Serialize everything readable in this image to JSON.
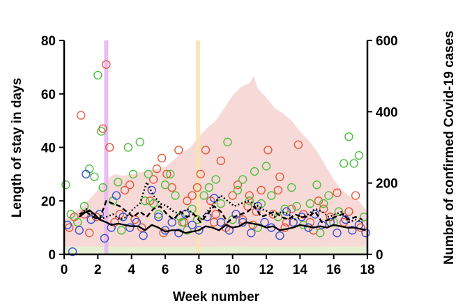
{
  "chart_data": {
    "type": "scatter",
    "title": "",
    "xlabel": "Week number",
    "ylabel": "Length of stay in days",
    "y2label": "Number of confirmed Covid-19 cases",
    "xlim": [
      0,
      18
    ],
    "ylim": [
      0,
      80
    ],
    "y2lim": [
      0,
      600
    ],
    "xticks": [
      "0",
      "2",
      "4",
      "6",
      "8",
      "10",
      "12",
      "14",
      "16",
      "18"
    ],
    "yticks": [
      "0",
      "20",
      "40",
      "60",
      "80"
    ],
    "y2ticks": [
      "0",
      "200",
      "400",
      "600"
    ],
    "grid": false,
    "colors": {
      "red": "#e8563a",
      "green": "#4cbf3c",
      "blue": "#3a4fd8",
      "cases_area": "#f6d3d0",
      "green_area": "#e2f3d2",
      "marker_purple": "#e7b6f3",
      "marker_yellow": "#f9e2b2"
    },
    "vertical_markers": [
      {
        "x": 2.5,
        "color": "#e7b6f3"
      },
      {
        "x": 7.95,
        "color": "#f9e2b2"
      }
    ],
    "cases_series": {
      "axis": "right",
      "x": [
        0,
        0.5,
        1,
        1.5,
        2,
        2.5,
        3,
        3.5,
        4,
        4.5,
        5,
        5.5,
        6,
        6.5,
        7,
        7.5,
        8,
        8.5,
        9,
        9.5,
        10,
        10.5,
        11,
        11.25,
        11.5,
        12,
        12.5,
        13,
        13.5,
        14,
        14.5,
        15,
        15.5,
        16,
        16.5,
        17,
        17.5,
        18
      ],
      "y": [
        95,
        115,
        130,
        155,
        180,
        210,
        225,
        220,
        225,
        230,
        235,
        240,
        245,
        265,
        285,
        300,
        330,
        355,
        375,
        410,
        445,
        470,
        480,
        500,
        465,
        440,
        410,
        395,
        375,
        345,
        320,
        290,
        250,
        210,
        180,
        160,
        150,
        120
      ]
    },
    "low_band_series": {
      "axis": "right",
      "x": [
        0,
        2,
        4,
        6,
        8,
        10,
        12,
        14,
        16,
        18
      ],
      "y": [
        22,
        22,
        20,
        20,
        20,
        22,
        20,
        20,
        22,
        22
      ]
    },
    "series": [
      {
        "marker": "circle",
        "color": "#e8563a",
        "points": [
          [
            0.3,
            10
          ],
          [
            0.6,
            14
          ],
          [
            1.0,
            52
          ],
          [
            1.2,
            15
          ],
          [
            1.5,
            8
          ],
          [
            1.9,
            14
          ],
          [
            2.3,
            47
          ],
          [
            2.5,
            71
          ],
          [
            2.7,
            40
          ],
          [
            3.0,
            12
          ],
          [
            3.3,
            15
          ],
          [
            3.6,
            24
          ],
          [
            3.9,
            26
          ],
          [
            4.2,
            13
          ],
          [
            4.6,
            10
          ],
          [
            5.1,
            20
          ],
          [
            5.3,
            28
          ],
          [
            5.5,
            32
          ],
          [
            5.8,
            36
          ],
          [
            6.1,
            30
          ],
          [
            6.4,
            25
          ],
          [
            6.8,
            39
          ],
          [
            7.1,
            12
          ],
          [
            7.3,
            20
          ],
          [
            7.6,
            22
          ],
          [
            7.9,
            25
          ],
          [
            8.1,
            30
          ],
          [
            8.4,
            39
          ],
          [
            8.7,
            20
          ],
          [
            9.0,
            15
          ],
          [
            9.3,
            35
          ],
          [
            9.6,
            10
          ],
          [
            10.0,
            22
          ],
          [
            10.3,
            26
          ],
          [
            10.6,
            13
          ],
          [
            11.0,
            22
          ],
          [
            11.4,
            16
          ],
          [
            11.7,
            24
          ],
          [
            12.1,
            39
          ],
          [
            12.4,
            15
          ],
          [
            12.8,
            29
          ],
          [
            13.2,
            12
          ],
          [
            13.5,
            17
          ],
          [
            13.9,
            41
          ],
          [
            14.2,
            15
          ],
          [
            14.6,
            12
          ],
          [
            15.1,
            20
          ],
          [
            15.4,
            17
          ],
          [
            15.8,
            14
          ],
          [
            16.2,
            23
          ],
          [
            16.6,
            12
          ],
          [
            16.9,
            16
          ],
          [
            17.3,
            22
          ],
          [
            17.6,
            10
          ],
          [
            5.9,
            8
          ],
          [
            8.9,
            12
          ],
          [
            11.2,
            11
          ],
          [
            14.8,
            9
          ],
          [
            10.9,
            18
          ],
          [
            12.7,
            24
          ],
          [
            13.1,
            10
          ]
        ]
      },
      {
        "marker": "circle",
        "color": "#4cbf3c",
        "points": [
          [
            0.1,
            26
          ],
          [
            0.4,
            15
          ],
          [
            0.8,
            12
          ],
          [
            1.2,
            18
          ],
          [
            1.5,
            32
          ],
          [
            1.8,
            29
          ],
          [
            2.0,
            67
          ],
          [
            2.2,
            46
          ],
          [
            2.3,
            25
          ],
          [
            2.9,
            20
          ],
          [
            3.2,
            27
          ],
          [
            3.5,
            14
          ],
          [
            3.8,
            40
          ],
          [
            4.1,
            30
          ],
          [
            4.5,
            42
          ],
          [
            4.8,
            20
          ],
          [
            5.0,
            30
          ],
          [
            5.3,
            19
          ],
          [
            5.6,
            15
          ],
          [
            6.0,
            26
          ],
          [
            6.3,
            30
          ],
          [
            6.6,
            22
          ],
          [
            6.9,
            14
          ],
          [
            7.3,
            9
          ],
          [
            7.6,
            17
          ],
          [
            7.9,
            13
          ],
          [
            8.3,
            22
          ],
          [
            8.6,
            25
          ],
          [
            9.0,
            28
          ],
          [
            9.3,
            19
          ],
          [
            9.7,
            42
          ],
          [
            10.0,
            13
          ],
          [
            10.3,
            24
          ],
          [
            10.6,
            28
          ],
          [
            11.0,
            20
          ],
          [
            11.3,
            31
          ],
          [
            11.7,
            19
          ],
          [
            12.0,
            33
          ],
          [
            12.3,
            22
          ],
          [
            12.7,
            14
          ],
          [
            13.1,
            17
          ],
          [
            13.5,
            25
          ],
          [
            13.8,
            18
          ],
          [
            14.2,
            11
          ],
          [
            14.6,
            19
          ],
          [
            15.0,
            26
          ],
          [
            15.4,
            19
          ],
          [
            15.7,
            22
          ],
          [
            16.0,
            12
          ],
          [
            16.3,
            16
          ],
          [
            16.6,
            34
          ],
          [
            16.9,
            44
          ],
          [
            17.2,
            34
          ],
          [
            17.5,
            37
          ],
          [
            17.8,
            14
          ],
          [
            3.4,
            9
          ],
          [
            7.0,
            12
          ],
          [
            11.5,
            10
          ],
          [
            15.2,
            8
          ]
        ]
      },
      {
        "marker": "circle",
        "color": "#3a4fd8",
        "points": [
          [
            0.2,
            11
          ],
          [
            0.5,
            1
          ],
          [
            0.9,
            9
          ],
          [
            1.3,
            30
          ],
          [
            1.6,
            13
          ],
          [
            2.1,
            15
          ],
          [
            2.4,
            6
          ],
          [
            2.8,
            10
          ],
          [
            3.1,
            22
          ],
          [
            3.5,
            14
          ],
          [
            3.9,
            10
          ],
          [
            4.3,
            12
          ],
          [
            4.7,
            7
          ],
          [
            5.2,
            24
          ],
          [
            5.6,
            14
          ],
          [
            6.0,
            9
          ],
          [
            6.4,
            12
          ],
          [
            6.8,
            8
          ],
          [
            7.2,
            15
          ],
          [
            7.6,
            11
          ],
          [
            8.0,
            9
          ],
          [
            8.5,
            14
          ],
          [
            8.9,
            21
          ],
          [
            9.3,
            12
          ],
          [
            9.8,
            9
          ],
          [
            10.2,
            15
          ],
          [
            10.6,
            12
          ],
          [
            11.1,
            8
          ],
          [
            11.5,
            18
          ],
          [
            11.9,
            12
          ],
          [
            12.3,
            10
          ],
          [
            12.8,
            7
          ],
          [
            13.2,
            16
          ],
          [
            13.6,
            12
          ],
          [
            14.1,
            14
          ],
          [
            14.5,
            10
          ],
          [
            14.9,
            15
          ],
          [
            15.3,
            11
          ],
          [
            15.8,
            12
          ],
          [
            16.2,
            8
          ],
          [
            16.7,
            13
          ],
          [
            17.1,
            9
          ],
          [
            17.5,
            11
          ],
          [
            17.9,
            8
          ]
        ]
      }
    ],
    "trend_lines": [
      {
        "style": "solid",
        "color": "#000000",
        "x": [
          0.9,
          1.2,
          1.5,
          1.8,
          2.1,
          2.5,
          2.8,
          3.2,
          3.6,
          4.0,
          4.4,
          4.8,
          5.2,
          5.6,
          6.0,
          6.4,
          6.8,
          7.2,
          7.6,
          8.0,
          8.4,
          8.8,
          9.2,
          9.6,
          10.0,
          10.4,
          10.8,
          11.2,
          11.6,
          12.0,
          12.4,
          12.8,
          13.2,
          13.6,
          14.0,
          14.4,
          14.8,
          15.2,
          15.6,
          16.0,
          16.4,
          16.8,
          17.2,
          17.6,
          17.9
        ],
        "y": [
          14,
          15.5,
          16.5,
          15,
          13,
          12,
          11,
          11.5,
          11,
          10.5,
          10.5,
          9,
          11,
          10,
          8.5,
          9,
          9,
          8,
          8.5,
          9,
          10.5,
          10,
          9,
          11,
          10,
          10.5,
          12,
          11.5,
          11,
          10,
          10.5,
          9,
          9.5,
          10,
          11,
          10.5,
          10,
          10.5,
          10,
          11,
          10.5,
          10,
          10,
          9.5,
          9
        ]
      },
      {
        "style": "dashed",
        "color": "#000000",
        "x": [
          0.9,
          1.3,
          1.7,
          2.1,
          2.5,
          2.9,
          3.3,
          3.7,
          4.1,
          4.5,
          4.9,
          5.3,
          5.7,
          6.1,
          6.5,
          6.9,
          7.3,
          7.7,
          8.1,
          8.5,
          8.9,
          9.3,
          9.7,
          10.1,
          10.5,
          10.9,
          11.3,
          11.7,
          12.1,
          12.5,
          12.9,
          13.3,
          13.7,
          14.1,
          14.5,
          14.9,
          15.3,
          15.7,
          16.1,
          16.5,
          16.9,
          17.3,
          17.7
        ],
        "y": [
          15,
          16,
          14,
          13,
          20,
          19,
          18,
          16,
          14,
          16,
          14,
          17,
          18,
          15,
          13,
          16,
          14,
          15,
          12,
          15,
          18,
          16,
          12,
          14,
          15,
          16,
          18,
          14,
          15,
          16,
          14,
          13,
          15,
          14,
          14,
          16,
          12,
          13,
          14,
          15,
          13,
          14,
          13
        ]
      },
      {
        "style": "dotted",
        "color": "#000000",
        "x": [
          0.9,
          1.3,
          1.7,
          2.1,
          2.5,
          2.9,
          3.3,
          3.7,
          4.1,
          4.5,
          4.9,
          5.3,
          5.7,
          6.1,
          6.5,
          6.9,
          7.3,
          7.7,
          8.1,
          8.5,
          8.9,
          9.3,
          9.7,
          10.1,
          10.5,
          10.9,
          11.3,
          11.7,
          12.1,
          12.5,
          12.9,
          13.3,
          13.7,
          14.1,
          14.5,
          14.9,
          15.3,
          15.7,
          16.1,
          16.5,
          16.9,
          17.3,
          17.7
        ],
        "y": [
          14,
          17,
          15,
          13,
          14,
          15,
          13,
          14,
          17,
          19,
          27,
          22,
          19,
          18,
          16,
          15,
          17,
          15,
          13,
          16,
          19,
          22,
          20,
          18,
          19,
          20,
          19,
          17,
          16,
          14,
          16,
          15,
          13,
          14,
          15,
          17,
          16,
          14,
          15,
          16,
          12,
          13,
          12
        ]
      }
    ]
  }
}
